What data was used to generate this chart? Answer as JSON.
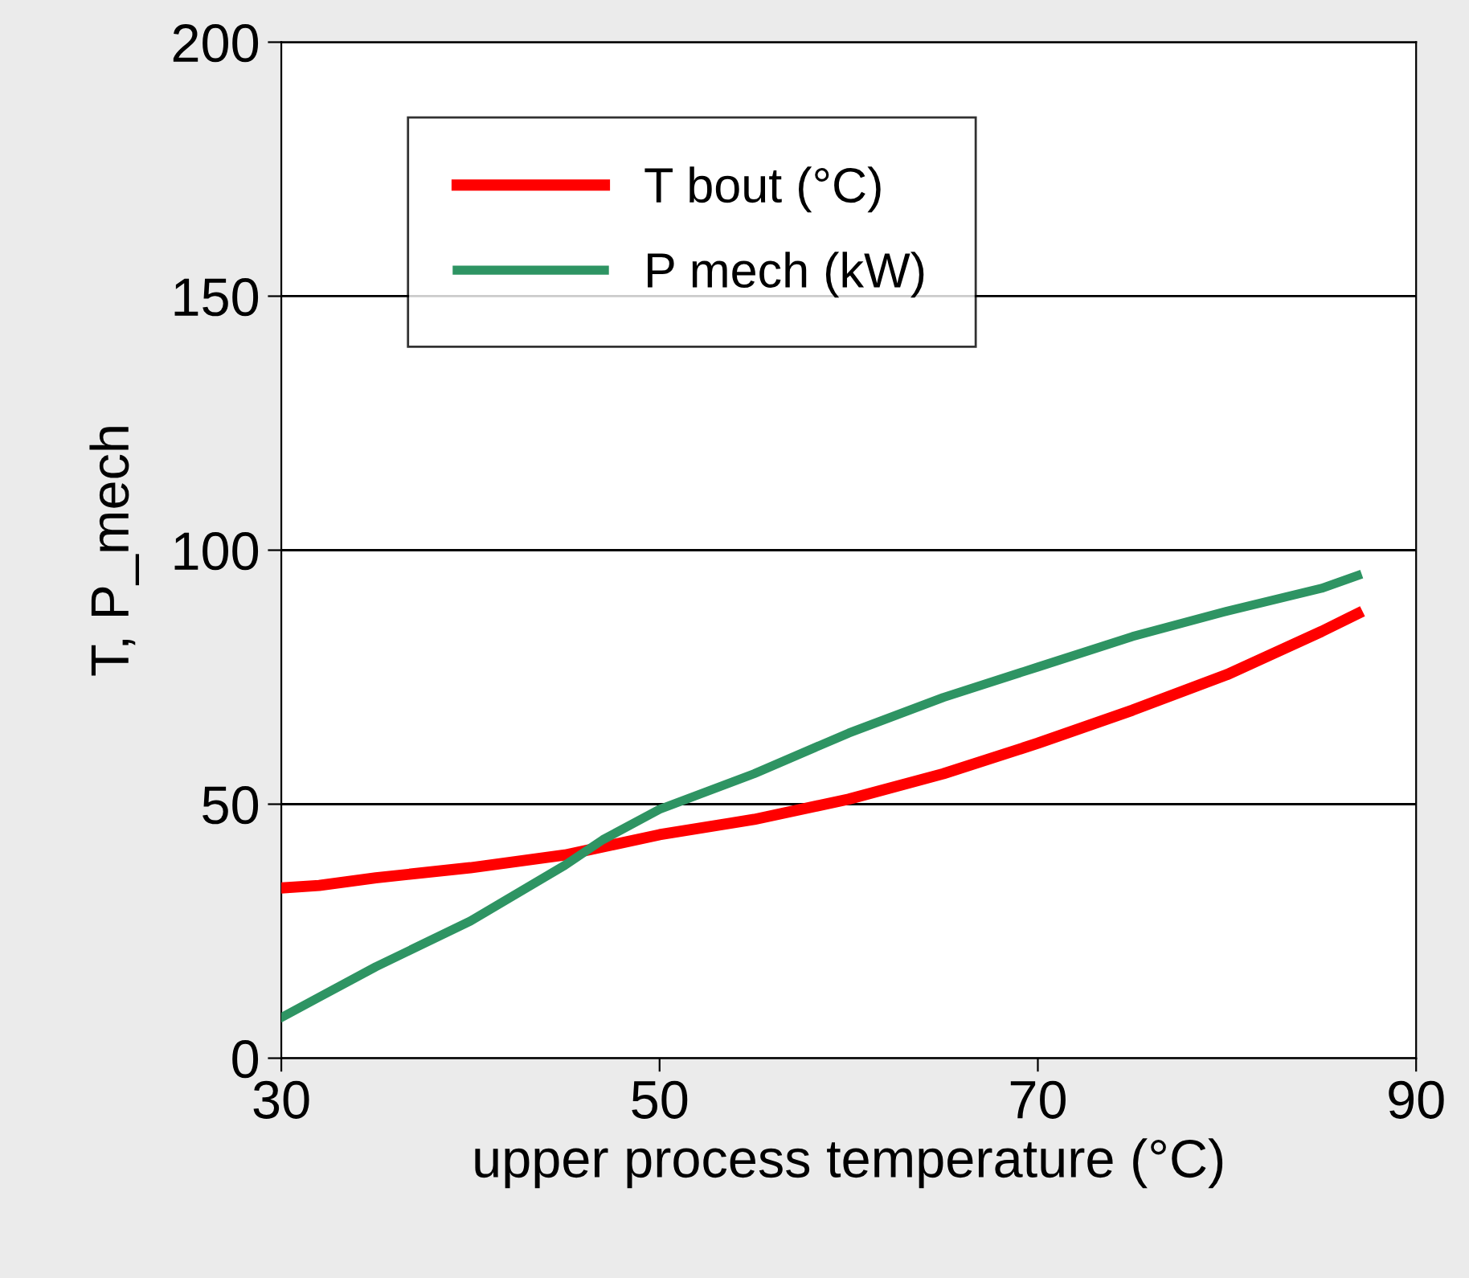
{
  "chart_data": {
    "type": "line",
    "xlabel": "upper process temperature (°C)",
    "ylabel": "T, P_mech",
    "xlim": [
      30,
      90
    ],
    "xticks": [
      30,
      50,
      70,
      90
    ],
    "ylim": [
      0,
      200
    ],
    "yticks": [
      0,
      50,
      100,
      150,
      200
    ],
    "grid": "y",
    "legend": "top left",
    "series": [
      {
        "name": "T bout (°C)",
        "color": "#ff0000",
        "line_style": "solid",
        "x": [
          30,
          32,
          35,
          40,
          45,
          50,
          55,
          60,
          65,
          70,
          75,
          80,
          85,
          86.9
        ],
        "values": [
          33.5,
          34,
          35.5,
          37.5,
          40,
          44,
          47,
          51,
          56,
          62,
          68.5,
          75.5,
          84,
          87.5
        ]
      },
      {
        "name": "P mech (kW)",
        "color": "#2e9463",
        "line_style": "solid",
        "x": [
          30,
          32,
          35,
          40,
          45,
          47,
          50,
          55,
          60,
          65,
          70,
          75,
          80,
          85,
          86.9
        ],
        "values": [
          8,
          12,
          18,
          27,
          38,
          43,
          49,
          56,
          64,
          71,
          77,
          83,
          88,
          92.5,
          95
        ]
      }
    ]
  }
}
